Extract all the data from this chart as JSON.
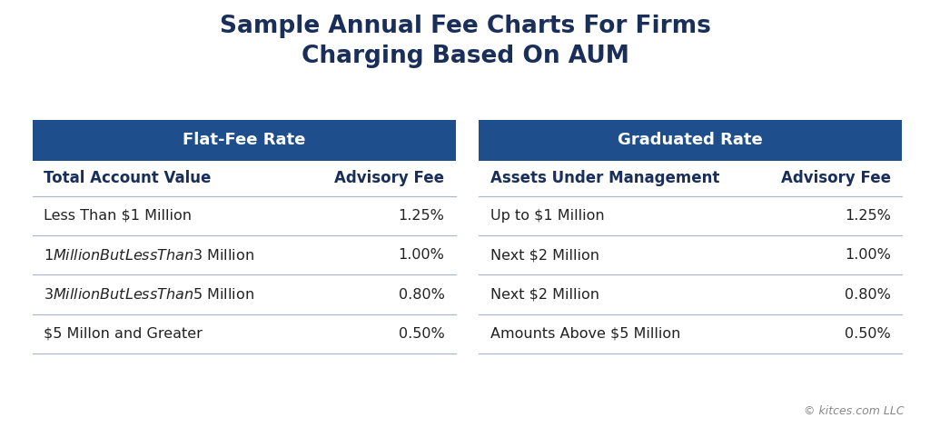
{
  "title_line1": "Sample Annual Fee Charts For Firms",
  "title_line2": "Charging Based On AUM",
  "title_color": "#1a2e5a",
  "title_fontsize": 19,
  "background_color": "#ffffff",
  "header_bg_color": "#1f4e8c",
  "header_text_color": "#ffffff",
  "header_fontsize": 13,
  "subheader_fontsize": 12,
  "data_fontsize": 11.5,
  "divider_color": "#b0b8c8",
  "text_color": "#1a2e5a",
  "data_text_color": "#222222",
  "left_table": {
    "header": "Flat-Fee Rate",
    "col1_label": "Total Account Value",
    "col2_label": "Advisory Fee",
    "rows": [
      [
        "Less Than $1 Million",
        "1.25%"
      ],
      [
        "$1 Million But Less Than $3 Million",
        "1.00%"
      ],
      [
        "$3 Million But Less Than $5 Million",
        "0.80%"
      ],
      [
        "$5 Millon and Greater",
        "0.50%"
      ]
    ]
  },
  "right_table": {
    "header": "Graduated Rate",
    "col1_label": "Assets Under Management",
    "col2_label": "Advisory Fee",
    "rows": [
      [
        "Up to $1 Million",
        "1.25%"
      ],
      [
        "Next $2 Million",
        "1.00%"
      ],
      [
        "Next $2 Million",
        "0.80%"
      ],
      [
        "Amounts Above $5 Million",
        "0.50%"
      ]
    ]
  },
  "footer_text": "© kitces.com LLC",
  "footer_fontsize": 9,
  "footer_color": "#888888"
}
